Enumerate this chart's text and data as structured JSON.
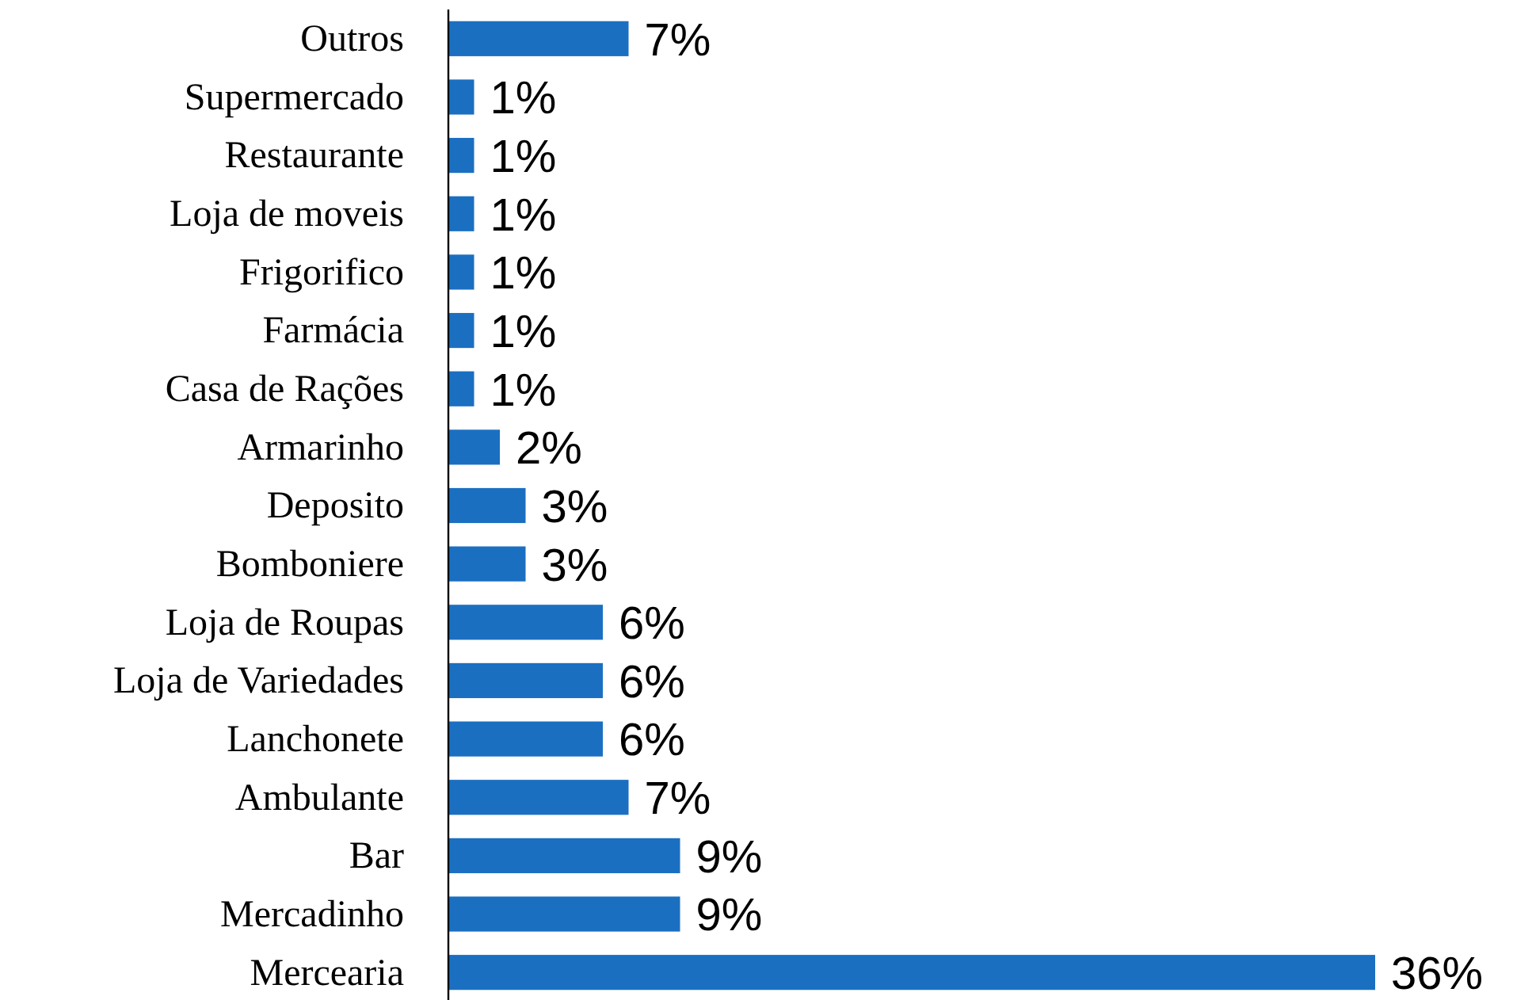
{
  "chart_data": {
    "type": "bar",
    "orientation": "horizontal",
    "categories": [
      "Outros",
      "Supermercado",
      "Restaurante",
      "Loja de moveis",
      "Frigorifico",
      "Farmácia",
      "Casa de Rações",
      "Armarinho",
      "Deposito",
      "Bomboniere",
      "Loja de Roupas",
      "Loja de Variedades",
      "Lanchonete",
      "Ambulante",
      "Bar",
      "Mercadinho",
      "Mercearia"
    ],
    "values": [
      7,
      1,
      1,
      1,
      1,
      1,
      1,
      2,
      3,
      3,
      6,
      6,
      6,
      7,
      9,
      9,
      36
    ],
    "value_labels": [
      "7%",
      "1%",
      "1%",
      "1%",
      "1%",
      "1%",
      "1%",
      "2%",
      "3%",
      "3%",
      "6%",
      "6%",
      "6%",
      "7%",
      "9%",
      "9%",
      "36%"
    ],
    "color": "#1b6fc1",
    "xlim": [
      0,
      36
    ],
    "tick_labels": "y"
  }
}
